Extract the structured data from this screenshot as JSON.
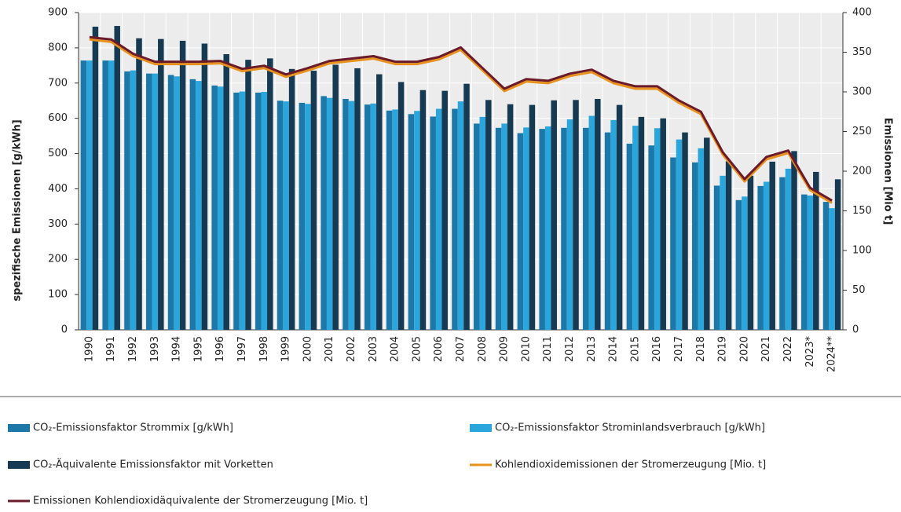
{
  "chart_data": {
    "type": "bar",
    "y_label": "spezifische  Emissionen [g/kWh]",
    "y2_label": "Emissionen [Mio t]",
    "categories": [
      "1990",
      "1991",
      "1992",
      "1993",
      "1994",
      "1995",
      "1996",
      "1997",
      "1998",
      "1999",
      "2000",
      "2001",
      "2002",
      "2003",
      "2004",
      "2005",
      "2006",
      "2007",
      "2008",
      "2009",
      "2010",
      "2011",
      "2012",
      "2013",
      "2014",
      "2015",
      "2016",
      "2017",
      "2018",
      "2019",
      "2020",
      "2021",
      "2022",
      "2023*",
      "2024**"
    ],
    "ylim": [
      0,
      900
    ],
    "yticks": [
      0,
      100,
      200,
      300,
      400,
      500,
      600,
      700,
      800,
      900
    ],
    "y2lim": [
      0,
      400
    ],
    "y2ticks": [
      0,
      50,
      100,
      150,
      200,
      250,
      300,
      350,
      400
    ],
    "grid": true,
    "series": [
      {
        "name": "CO₂-Emissionsfaktor Strommix [g/kWh]",
        "type": "bar",
        "color": "#1b78a8",
        "values": [
          764,
          764,
          733,
          727,
          723,
          711,
          693,
          673,
          673,
          650,
          644,
          663,
          655,
          639,
          622,
          612,
          605,
          627,
          585,
          573,
          558,
          570,
          573,
          573,
          560,
          528,
          523,
          489,
          475,
          409,
          368,
          408,
          433,
          384,
          363
        ]
      },
      {
        "name": "CO₂-Emissionsfaktor Strominlandsverbrauch [g/kWh]",
        "type": "bar",
        "color": "#2ba6dc",
        "values": [
          764,
          764,
          736,
          727,
          719,
          706,
          690,
          676,
          675,
          648,
          641,
          658,
          649,
          642,
          625,
          621,
          627,
          648,
          604,
          585,
          574,
          577,
          597,
          607,
          595,
          579,
          572,
          540,
          515,
          437,
          378,
          420,
          457,
          381,
          345
        ]
      },
      {
        "name": "CO₂-Äquivalente  Emissionsfaktor mit Vorketten",
        "type": "bar",
        "color": "#163a52",
        "values": [
          860,
          862,
          827,
          825,
          820,
          812,
          782,
          766,
          770,
          740,
          735,
          752,
          742,
          725,
          703,
          680,
          678,
          698,
          652,
          640,
          638,
          651,
          652,
          655,
          638,
          604,
          600,
          560,
          545,
          478,
          437,
          477,
          507,
          448,
          427
        ]
      },
      {
        "name": "Kohlendioxidemissionen der Stromerzeugung [Mio. t]",
        "type": "line",
        "axis": "y2",
        "color": "#e8921e",
        "values": [
          366,
          363,
          345,
          335,
          335,
          335,
          336,
          326,
          330,
          319,
          327,
          336,
          339,
          342,
          335,
          335,
          341,
          353,
          327,
          301,
          313,
          311,
          320,
          325,
          311,
          304,
          304,
          286,
          272,
          221,
          187,
          215,
          223,
          176,
          160
        ]
      },
      {
        "name": "Emissionen Kohlendioxidäquivalente der Stromerzeugung [Mio. t]",
        "type": "line",
        "axis": "y2",
        "color": "#6b1a2a",
        "values": [
          369,
          366,
          348,
          338,
          338,
          338,
          339,
          329,
          333,
          322,
          330,
          339,
          342,
          345,
          338,
          338,
          344,
          356,
          330,
          304,
          316,
          314,
          323,
          328,
          314,
          307,
          307,
          289,
          275,
          224,
          190,
          218,
          226,
          179,
          163
        ]
      }
    ]
  }
}
